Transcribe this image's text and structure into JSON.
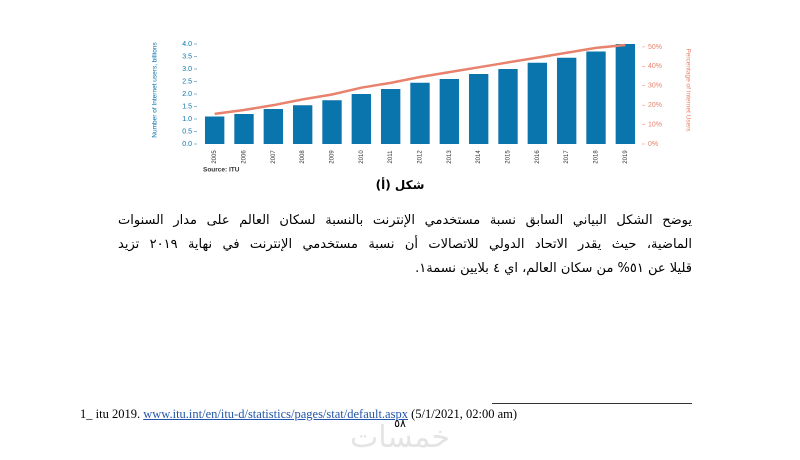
{
  "chart_data": {
    "type": "bar",
    "y_label": "Number of Internet users, billions",
    "y2_label": "Percentage of Internet Users",
    "source": "Source: ITU",
    "categories": [
      "2005",
      "2006",
      "2007",
      "2008",
      "2009",
      "2010",
      "2011",
      "2012",
      "2013",
      "2014",
      "2015",
      "2016",
      "2017",
      "2018",
      "2019"
    ],
    "series": [
      {
        "color": "#0a74ad",
        "values": [
          1.1,
          1.2,
          1.4,
          1.55,
          1.75,
          2.0,
          2.2,
          2.45,
          2.6,
          2.8,
          3.0,
          3.25,
          3.45,
          3.7,
          4.0
        ]
      },
      {
        "type": "line",
        "axis": "y2",
        "color": "#e8826c",
        "values": [
          15.5,
          17.5,
          20,
          23,
          25.5,
          29,
          31.5,
          34.5,
          37,
          39.5,
          42,
          44.5,
          47,
          49.5,
          51
        ]
      }
    ],
    "ylim": [
      0,
      4
    ],
    "yticks": [
      {
        "value": 0,
        "label": "0.0"
      },
      {
        "value": 0.5,
        "label": "0.5"
      },
      {
        "value": 1,
        "label": "1.0"
      },
      {
        "value": 1.5,
        "label": "1.5"
      },
      {
        "value": 2,
        "label": "2.0"
      },
      {
        "value": 2.5,
        "label": "2.5"
      },
      {
        "value": 3,
        "label": "3.0"
      },
      {
        "value": 3.5,
        "label": "3.5"
      },
      {
        "value": 4,
        "label": "4.0"
      }
    ],
    "y2lim": [
      0,
      51.5
    ],
    "y2ticks": [
      {
        "value": 0,
        "label": "0%"
      },
      {
        "value": 10,
        "label": "10%"
      },
      {
        "value": 20,
        "label": "20%"
      },
      {
        "value": 30,
        "label": "30%"
      },
      {
        "value": 40,
        "label": "40%"
      },
      {
        "value": 50,
        "label": "50%"
      }
    ]
  },
  "caption": "شكل (أ)",
  "paragraph": [
    "يوضح الشكل البياني السابق نسبة مستخدمي الإنترنت بالنسبة لسكان العالم على مدار السنوات",
    "الماضية، حيث يقدر الاتحاد الدولي للاتصالات أن نسبة مستخدمي الإنترنت في نهاية ٢٠١٩ تزيد",
    "قليلا عن ٥١% من سكان العالم، اي ٤ بلايين نسمة١."
  ],
  "footnote": {
    "marker": "1_ itu 2019.",
    "url": "www.itu.int/en/itu-d/statistics/pages/stat/default.aspx",
    "date": "(5/1/2021, 02:00 am)"
  },
  "page_number": "٥٨",
  "watermark": "خمسات"
}
